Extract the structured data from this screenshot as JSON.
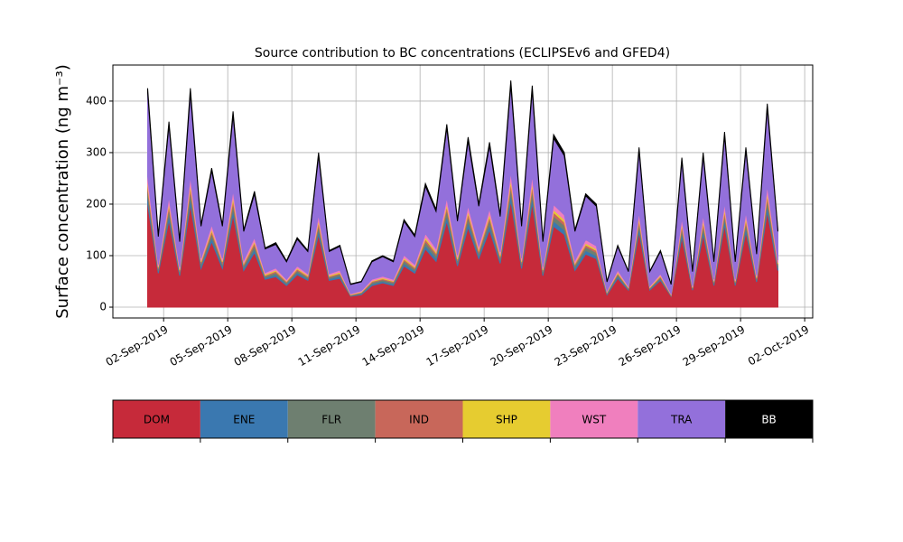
{
  "chart_data": {
    "type": "stacked_area",
    "title": "Source contribution to BC concentrations (ECLIPSEv6 and GFED4)",
    "y_label": "Surface concentration (ng m⁻³)",
    "x": [
      "2019-09-01T06:00",
      "2019-09-01T18:00",
      "2019-09-02T06:00",
      "2019-09-02T18:00",
      "2019-09-03T06:00",
      "2019-09-03T18:00",
      "2019-09-04T06:00",
      "2019-09-04T18:00",
      "2019-09-05T06:00",
      "2019-09-05T18:00",
      "2019-09-06T06:00",
      "2019-09-06T18:00",
      "2019-09-07T06:00",
      "2019-09-07T18:00",
      "2019-09-08T06:00",
      "2019-09-08T18:00",
      "2019-09-09T06:00",
      "2019-09-09T18:00",
      "2019-09-10T06:00",
      "2019-09-10T18:00",
      "2019-09-11T06:00",
      "2019-09-11T18:00",
      "2019-09-12T06:00",
      "2019-09-12T18:00",
      "2019-09-13T06:00",
      "2019-09-13T18:00",
      "2019-09-14T06:00",
      "2019-09-14T18:00",
      "2019-09-15T06:00",
      "2019-09-15T18:00",
      "2019-09-16T06:00",
      "2019-09-16T18:00",
      "2019-09-17T06:00",
      "2019-09-17T18:00",
      "2019-09-18T06:00",
      "2019-09-18T18:00",
      "2019-09-19T06:00",
      "2019-09-19T18:00",
      "2019-09-20T06:00",
      "2019-09-20T18:00",
      "2019-09-21T06:00",
      "2019-09-21T18:00",
      "2019-09-22T06:00",
      "2019-09-22T18:00",
      "2019-09-23T06:00",
      "2019-09-23T18:00",
      "2019-09-24T06:00",
      "2019-09-24T18:00",
      "2019-09-25T06:00",
      "2019-09-25T18:00",
      "2019-09-26T06:00",
      "2019-09-26T18:00",
      "2019-09-27T06:00",
      "2019-09-27T18:00",
      "2019-09-28T06:00",
      "2019-09-28T18:00",
      "2019-09-29T06:00",
      "2019-09-29T18:00",
      "2019-09-30T06:00",
      "2019-09-30T18:00"
    ],
    "series": [
      {
        "name": "DOM",
        "color": "#c62a3a",
        "values": [
          200,
          66,
          169,
          61,
          200,
          75,
          127,
          75,
          179,
          71,
          106,
          54,
          59,
          42,
          63,
          52,
          141,
          52,
          56,
          21,
          24,
          42,
          47,
          42,
          80,
          66,
          113,
          89,
          167,
          80,
          155,
          94,
          150,
          85,
          207,
          75,
          202,
          61,
          157,
          141,
          71,
          103,
          94,
          24,
          56,
          33,
          146,
          33,
          52,
          21,
          136,
          33,
          141,
          42,
          160,
          42,
          146,
          49,
          186,
          71
        ]
      },
      {
        "name": "ENE",
        "color": "#3a78b0",
        "values": [
          13,
          4,
          11,
          4,
          13,
          5,
          8,
          5,
          11,
          5,
          7,
          3,
          4,
          3,
          4,
          3,
          9,
          3,
          4,
          1,
          2,
          3,
          3,
          3,
          5,
          4,
          7,
          6,
          11,
          5,
          10,
          6,
          10,
          5,
          13,
          5,
          13,
          4,
          10,
          9,
          5,
          7,
          6,
          2,
          4,
          2,
          9,
          2,
          3,
          1,
          9,
          2,
          9,
          3,
          10,
          3,
          9,
          3,
          12,
          5
        ]
      },
      {
        "name": "FLR",
        "color": "#6e7f70",
        "values": [
          13,
          4,
          11,
          4,
          13,
          5,
          8,
          5,
          11,
          5,
          7,
          3,
          4,
          3,
          4,
          3,
          9,
          3,
          4,
          1,
          2,
          3,
          3,
          3,
          5,
          4,
          7,
          6,
          11,
          5,
          10,
          6,
          10,
          5,
          13,
          5,
          13,
          4,
          10,
          9,
          5,
          7,
          6,
          2,
          4,
          2,
          9,
          2,
          3,
          1,
          9,
          2,
          9,
          3,
          10,
          3,
          9,
          3,
          12,
          5
        ]
      },
      {
        "name": "IND",
        "color": "#c8675a",
        "values": [
          9,
          3,
          7,
          3,
          9,
          3,
          5,
          3,
          8,
          3,
          5,
          2,
          3,
          2,
          3,
          2,
          6,
          2,
          2,
          1,
          1,
          2,
          2,
          2,
          3,
          3,
          5,
          4,
          7,
          3,
          7,
          4,
          6,
          4,
          9,
          3,
          9,
          3,
          7,
          6,
          3,
          4,
          4,
          1,
          2,
          1,
          6,
          1,
          2,
          1,
          6,
          1,
          6,
          2,
          7,
          2,
          6,
          2,
          8,
          3
        ]
      },
      {
        "name": "SHP",
        "color": "#e6cc30",
        "values": [
          6,
          2,
          5,
          2,
          6,
          2,
          4,
          2,
          6,
          2,
          3,
          2,
          2,
          1,
          2,
          2,
          5,
          2,
          2,
          1,
          1,
          1,
          2,
          1,
          3,
          2,
          4,
          3,
          5,
          3,
          5,
          3,
          5,
          3,
          7,
          2,
          6,
          2,
          5,
          5,
          2,
          3,
          3,
          1,
          2,
          1,
          5,
          1,
          2,
          1,
          4,
          1,
          5,
          1,
          5,
          1,
          5,
          2,
          6,
          2
        ]
      },
      {
        "name": "WST",
        "color": "#f07fbe",
        "values": [
          13,
          4,
          11,
          4,
          13,
          5,
          8,
          5,
          11,
          5,
          7,
          3,
          4,
          3,
          4,
          3,
          9,
          3,
          4,
          1,
          2,
          3,
          3,
          3,
          5,
          4,
          7,
          6,
          11,
          5,
          10,
          6,
          10,
          5,
          13,
          5,
          13,
          4,
          10,
          9,
          5,
          7,
          6,
          2,
          4,
          2,
          9,
          2,
          3,
          1,
          9,
          2,
          9,
          3,
          10,
          3,
          9,
          3,
          12,
          5
        ]
      },
      {
        "name": "TRA",
        "color": "#9370db",
        "values": [
          162,
          54,
          139,
          49,
          162,
          62,
          105,
          62,
          146,
          56,
          85,
          46,
          46,
          34,
          52,
          43,
          115,
          43,
          46,
          18,
          17,
          34,
          38,
          34,
          66,
          54,
          92,
          72,
          136,
          66,
          126,
          77,
          123,
          69,
          169,
          62,
          165,
          49,
          129,
          115,
          56,
          85,
          77,
          17,
          46,
          28,
          120,
          28,
          43,
          18,
          111,
          28,
          115,
          34,
          131,
          34,
          120,
          41,
          151,
          56
        ]
      },
      {
        "name": "BB",
        "color": "#000000",
        "values": [
          9,
          3,
          7,
          3,
          9,
          3,
          5,
          3,
          8,
          3,
          5,
          2,
          3,
          2,
          3,
          2,
          6,
          2,
          2,
          1,
          1,
          2,
          2,
          2,
          3,
          3,
          5,
          4,
          7,
          3,
          7,
          4,
          6,
          4,
          9,
          3,
          9,
          3,
          7,
          6,
          3,
          4,
          4,
          1,
          2,
          1,
          6,
          1,
          2,
          1,
          6,
          1,
          6,
          2,
          7,
          2,
          6,
          2,
          8,
          3
        ]
      }
    ],
    "xlim": [
      "2019-08-30T15:00",
      "2019-10-02T09:00"
    ],
    "xticks": [
      {
        "value": "2019-09-02T00:00",
        "label": "02-Sep-2019"
      },
      {
        "value": "2019-09-05T00:00",
        "label": "05-Sep-2019"
      },
      {
        "value": "2019-09-08T00:00",
        "label": "08-Sep-2019"
      },
      {
        "value": "2019-09-11T00:00",
        "label": "11-Sep-2019"
      },
      {
        "value": "2019-09-14T00:00",
        "label": "14-Sep-2019"
      },
      {
        "value": "2019-09-17T00:00",
        "label": "17-Sep-2019"
      },
      {
        "value": "2019-09-20T00:00",
        "label": "20-Sep-2019"
      },
      {
        "value": "2019-09-23T00:00",
        "label": "23-Sep-2019"
      },
      {
        "value": "2019-09-26T00:00",
        "label": "26-Sep-2019"
      },
      {
        "value": "2019-09-29T00:00",
        "label": "29-Sep-2019"
      },
      {
        "value": "2019-10-02T00:00",
        "label": "02-Oct-2019"
      }
    ],
    "ylim": [
      -21,
      470
    ],
    "yticks": [
      0,
      100,
      200,
      300,
      400
    ],
    "grid": true
  }
}
